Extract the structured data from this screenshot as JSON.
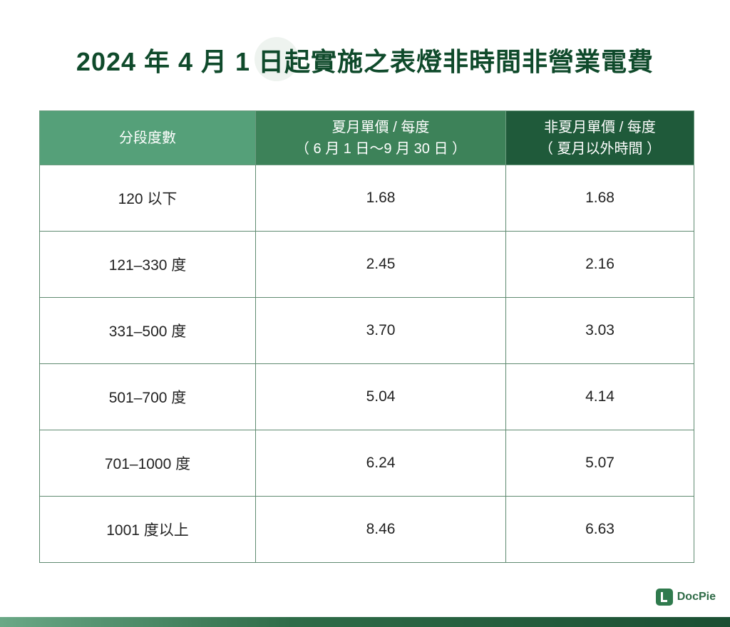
{
  "header": {
    "title": "2024 年 4 月 1 日起實施之表燈非時間非營業電費"
  },
  "table": {
    "columns": [
      [
        "分段度數"
      ],
      [
        "夏月單價 / 每度",
        "（ 6 月 1 日～9 月 30 日 ）"
      ],
      [
        "非夏月單價 / 每度",
        "（ 夏月以外時間 ）"
      ]
    ],
    "rows": [
      [
        "120 以下",
        "1.68",
        "1.68"
      ],
      [
        "121–330 度",
        "2.45",
        "2.16"
      ],
      [
        "331–500 度",
        "3.70",
        "3.03"
      ],
      [
        "501–700 度",
        "5.04",
        "4.14"
      ],
      [
        "701–1000 度",
        "6.24",
        "5.07"
      ],
      [
        "1001 度以上",
        "8.46",
        "6.63"
      ]
    ]
  },
  "footer": {
    "logo": "DocPie"
  }
}
